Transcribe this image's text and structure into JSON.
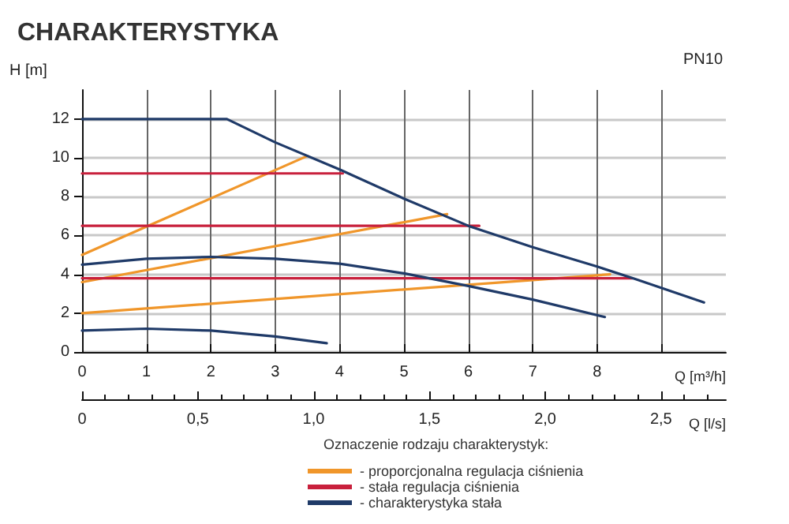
{
  "chart_data": {
    "type": "line",
    "title": "CHARAKTERYSTYKA",
    "annotations": [
      "PN10"
    ],
    "ylabel": "H [m]",
    "xlabel": "Q [m³/h]",
    "x2label": "Q [l/s]",
    "legend_title": "Oznaczenie rodzaju charakterystyk:",
    "series": [
      {
        "name": "- proporcjonalna regulacja ciśnienia",
        "color": "#f0962a",
        "x": [
          0,
          3.5,
          null,
          0,
          5.67,
          null,
          0,
          8.2
        ],
        "values": [
          5,
          10.1,
          null,
          3.6,
          7.1,
          null,
          2,
          4.0
        ]
      },
      {
        "name": "- stała regulacja ciśnienia",
        "color": "#c8203c",
        "x": [
          0,
          4.05,
          null,
          0,
          6.17,
          null,
          0,
          8.55
        ],
        "values": [
          9.2,
          9.2,
          null,
          6.5,
          6.5,
          null,
          3.8,
          3.8
        ]
      },
      {
        "name": "- charakterystyka stała",
        "color": "#1f3a68",
        "x": [
          0,
          2.25,
          3,
          4,
          5,
          6,
          7,
          8,
          8.6,
          9.66,
          null,
          0,
          1,
          2,
          3,
          4,
          5,
          6,
          7,
          8.12,
          null,
          0,
          1,
          2,
          3,
          3.8
        ],
        "values": [
          12,
          12,
          10.8,
          9.4,
          7.9,
          6.5,
          5.4,
          4.4,
          3.75,
          2.55,
          null,
          4.5,
          4.8,
          4.9,
          4.8,
          4.55,
          4.05,
          3.4,
          2.7,
          1.8,
          null,
          1.1,
          1.2,
          1.1,
          0.8,
          0.45
        ]
      }
    ],
    "xlim": [
      0,
      10
    ],
    "xticks": [
      0,
      1,
      2,
      3,
      4,
      5,
      6,
      7,
      8,
      {
        "value": 9,
        "label": null
      }
    ],
    "x2lim": [
      0,
      2.78
    ],
    "x2ticks": [
      0,
      {
        "value": 0.5,
        "label": "0,5"
      },
      {
        "value": 1,
        "label": "1,0"
      },
      {
        "value": 1.5,
        "label": "1,5"
      },
      {
        "value": 2,
        "label": "2,0"
      },
      {
        "value": 2.5,
        "label": "2,5"
      }
    ],
    "ylim": [
      0,
      13.5
    ],
    "yticks": [
      0,
      2,
      4,
      6,
      8,
      10,
      12
    ],
    "grid": true,
    "legend": "bottom",
    "marker": "none",
    "line_style": "solid"
  }
}
